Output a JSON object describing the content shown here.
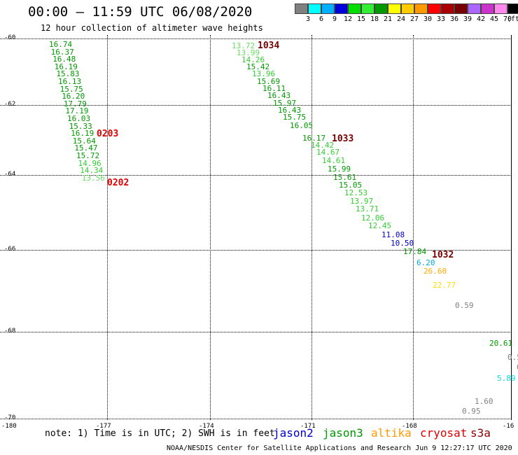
{
  "header": {
    "title": "00:00 – 11:59 UTC 06/08/2020",
    "subtitle": "12 hour collection of altimeter wave heights"
  },
  "legend": {
    "unit": "(ft)",
    "bins": [
      {
        "label": "3",
        "color": "#808080"
      },
      {
        "label": "6",
        "color": "#00ffff"
      },
      {
        "label": "9",
        "color": "#00b0ff"
      },
      {
        "label": "12",
        "color": "#0000dd"
      },
      {
        "label": "15",
        "color": "#00dd00"
      },
      {
        "label": "18",
        "color": "#33ee33"
      },
      {
        "label": "21",
        "color": "#009900"
      },
      {
        "label": "24",
        "color": "#ffff00"
      },
      {
        "label": "27",
        "color": "#ffcc00"
      },
      {
        "label": "30",
        "color": "#ff9900"
      },
      {
        "label": "33",
        "color": "#ff0000"
      },
      {
        "label": "36",
        "color": "#aa0000"
      },
      {
        "label": "39",
        "color": "#770000"
      },
      {
        "label": "42",
        "color": "#aa66ff"
      },
      {
        "label": "45",
        "color": "#cc33cc"
      },
      {
        "label": "70",
        "color": "#ff88ee"
      },
      {
        "label": "",
        "color": "#000000"
      }
    ]
  },
  "axes": {
    "lat_ticks": [
      "-60",
      "-62",
      "-64",
      "-66",
      "-68",
      "-70"
    ],
    "lon_ticks": [
      "-180",
      "-177",
      "-174",
      "-171",
      "-168",
      "-16"
    ]
  },
  "passes": [
    {
      "label": "0203",
      "color": "#dd0000"
    },
    {
      "label": "0202",
      "color": "#dd0000"
    },
    {
      "label": "1034",
      "color": "#770000"
    },
    {
      "label": "1033",
      "color": "#770000"
    },
    {
      "label": "1032",
      "color": "#770000"
    }
  ],
  "track1": [
    {
      "v": "16.74",
      "c": "#009900"
    },
    {
      "v": "16.37",
      "c": "#009900"
    },
    {
      "v": "16.48",
      "c": "#009900"
    },
    {
      "v": "16.19",
      "c": "#009900"
    },
    {
      "v": "15.83",
      "c": "#009900"
    },
    {
      "v": "16.13",
      "c": "#009900"
    },
    {
      "v": "15.75",
      "c": "#009900"
    },
    {
      "v": "16.20",
      "c": "#009900"
    },
    {
      "v": "17.79",
      "c": "#009900"
    },
    {
      "v": "17.19",
      "c": "#009900"
    },
    {
      "v": "16.03",
      "c": "#009900"
    },
    {
      "v": "15.33",
      "c": "#009900"
    },
    {
      "v": "16.19",
      "c": "#009900"
    },
    {
      "v": "15.64",
      "c": "#009900"
    },
    {
      "v": "15.47",
      "c": "#009900"
    },
    {
      "v": "15.72",
      "c": "#009900"
    },
    {
      "v": "14.96",
      "c": "#33cc33"
    },
    {
      "v": "14.34",
      "c": "#33cc33"
    },
    {
      "v": "13.56",
      "c": "#66dd66"
    }
  ],
  "track2": [
    {
      "v": "13.72",
      "c": "#66dd66"
    },
    {
      "v": "13.99",
      "c": "#66dd66"
    },
    {
      "v": "14.26",
      "c": "#33cc33"
    },
    {
      "v": "15.42",
      "c": "#009900"
    },
    {
      "v": "13.96",
      "c": "#33cc33"
    },
    {
      "v": "15.69",
      "c": "#009900"
    },
    {
      "v": "16.11",
      "c": "#009900"
    },
    {
      "v": "16.43",
      "c": "#009900"
    },
    {
      "v": "15.97",
      "c": "#009900"
    },
    {
      "v": "16.43",
      "c": "#009900"
    },
    {
      "v": "15.75",
      "c": "#009900"
    },
    {
      "v": "16.05",
      "c": "#009900"
    },
    {
      "v": "16.17",
      "c": "#009900"
    },
    {
      "v": "14.42",
      "c": "#33cc33"
    },
    {
      "v": "14.67",
      "c": "#33cc33"
    },
    {
      "v": "14.61",
      "c": "#33cc33"
    },
    {
      "v": "15.99",
      "c": "#009900"
    },
    {
      "v": "15.61",
      "c": "#009900"
    },
    {
      "v": "15.05",
      "c": "#009900"
    },
    {
      "v": "12.53",
      "c": "#33cc33"
    },
    {
      "v": "13.97",
      "c": "#33cc33"
    },
    {
      "v": "13.71",
      "c": "#33cc33"
    },
    {
      "v": "12.06",
      "c": "#33cc33"
    },
    {
      "v": "12.45",
      "c": "#33cc33"
    },
    {
      "v": "11.08",
      "c": "#0000cc"
    },
    {
      "v": "10.50",
      "c": "#0000cc"
    },
    {
      "v": "17.84",
      "c": "#009900"
    },
    {
      "v": "6.20",
      "c": "#00aadd"
    },
    {
      "v": "26.60",
      "c": "#ffaa00"
    },
    {
      "v": "22.77",
      "c": "#ffdd00"
    },
    {
      "v": "0.59",
      "c": "#808080"
    }
  ],
  "track3": [
    {
      "v": "20.61",
      "c": "#009900"
    },
    {
      "v": "0.5",
      "c": "#808080"
    },
    {
      "v": "0",
      "c": "#808080"
    },
    {
      "v": "5.89",
      "c": "#00dddd"
    },
    {
      "v": "1.60",
      "c": "#808080"
    },
    {
      "v": "0.95",
      "c": "#808080"
    }
  ],
  "footer": {
    "note": "note: 1) Time is in UTC; 2) SWH is in feet",
    "credit": "NOAA/NESDIS Center for Satellite Applications and Research   Jun  9 12:27:17 UTC 2020",
    "satellites": [
      {
        "name": "jason2",
        "color": "#0000cc"
      },
      {
        "name": "jason3",
        "color": "#009900"
      },
      {
        "name": "altika",
        "color": "#ff9900"
      },
      {
        "name": "cryosat",
        "color": "#dd0000"
      },
      {
        "name": "s3a",
        "color": "#880000"
      }
    ]
  }
}
